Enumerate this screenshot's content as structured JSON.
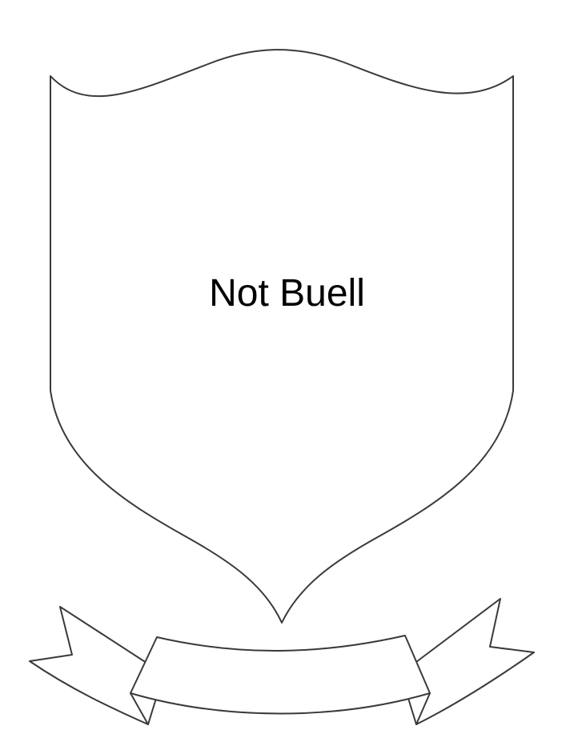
{
  "shield": {
    "text": "Not Buell"
  },
  "banner": {
    "text": ""
  },
  "colors": {
    "outline": "#3a3a3a",
    "background": "#ffffff",
    "text": "#000000"
  }
}
